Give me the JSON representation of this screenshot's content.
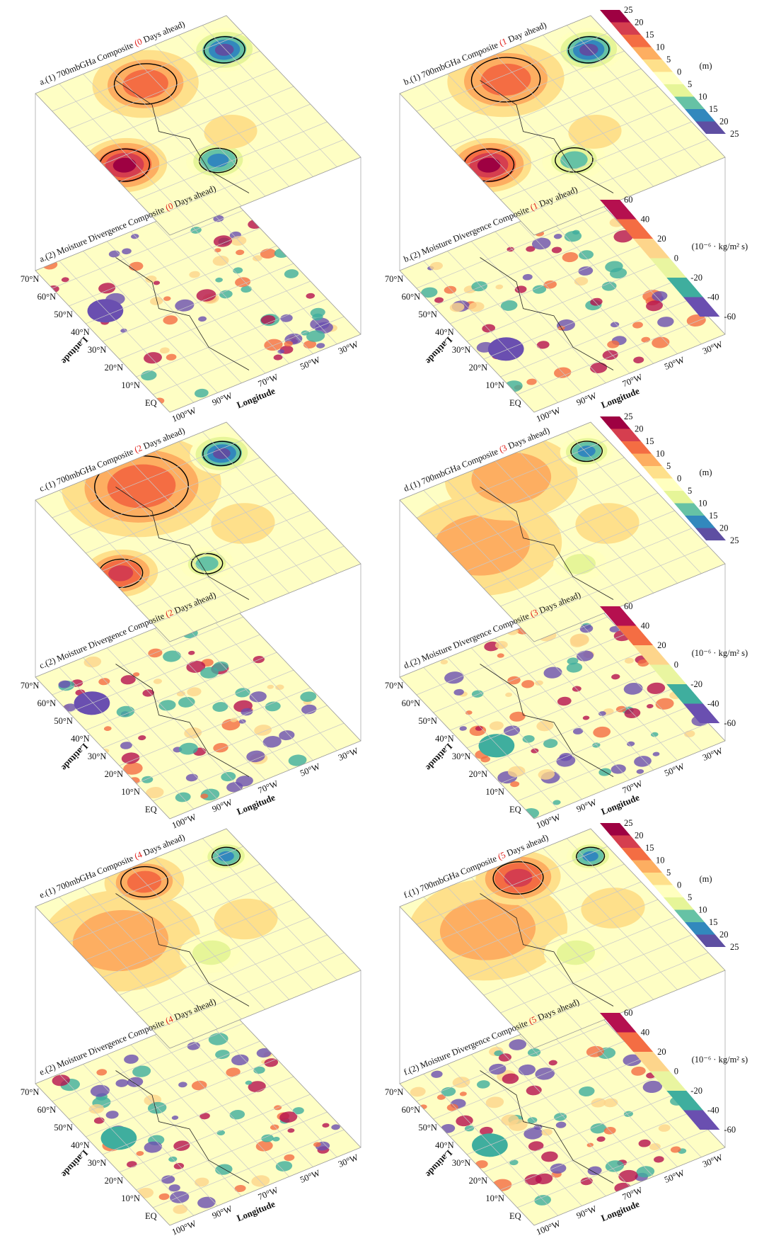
{
  "panels": [
    {
      "gha": {
        "prefix": "a.(1) 700mbGHa Composite ",
        "lead": "(0",
        "suffix": " Days ahead)"
      },
      "md": {
        "prefix": "a.(2) Moisture Divergence Composite ",
        "lead": "(0",
        "suffix": " Days ahead)"
      }
    },
    {
      "gha": {
        "prefix": "b.(1) 700mbGHa Composite ",
        "lead": "(1",
        "suffix": " Day ahead)"
      },
      "md": {
        "prefix": "b.(2) Moisture Divergence Composite ",
        "lead": "(1",
        "suffix": " Day ahead)"
      }
    },
    {
      "gha": {
        "prefix": "c.(1) 700mbGHa Composite ",
        "lead": "(2",
        "suffix": " Days ahead)"
      },
      "md": {
        "prefix": "c.(2) Moisture Divergence Composite ",
        "lead": "(2",
        "suffix": " Days ahead)"
      }
    },
    {
      "gha": {
        "prefix": "d.(1) 700mbGHa Composite ",
        "lead": "(3",
        "suffix": " Days ahead)"
      },
      "md": {
        "prefix": "d.(2) Moisture Divergence Composite ",
        "lead": "(3",
        "suffix": " Days ahead)"
      }
    },
    {
      "gha": {
        "prefix": "e.(1) 700mbGHa Composite ",
        "lead": "(4",
        "suffix": " Days ahead)"
      },
      "md": {
        "prefix": "e.(2) Moisture Divergence Composite ",
        "lead": "(4",
        "suffix": " Days ahead)"
      }
    },
    {
      "gha": {
        "prefix": "f.(1) 700mbGHa Composite ",
        "lead": "(5",
        "suffix": " Days ahead)"
      },
      "md": {
        "prefix": "f.(2) Moisture Divergence Composite ",
        "lead": "(5",
        "suffix": " Days ahead)"
      }
    }
  ],
  "axes": {
    "lat_ticks": [
      "70°N",
      "60°N",
      "50°N",
      "40°N",
      "30°N",
      "20°N",
      "10°N",
      "EQ"
    ],
    "lon_ticks": [
      "100°W",
      "90°W",
      "70°W",
      "50°W",
      "30°W"
    ],
    "lat_label": "Latitude",
    "lon_label": "Longitude"
  },
  "colorbars": {
    "gha": {
      "ticks": [
        25,
        20,
        15,
        10,
        5,
        0,
        5,
        10,
        15,
        20,
        25
      ],
      "unit": "(m)",
      "colors": [
        "#9e0142",
        "#d53e4f",
        "#f46d43",
        "#fdae61",
        "#fee08b",
        "#ffffbf",
        "#e6f598",
        "#66c2a5",
        "#3288bd",
        "#5e4fa2"
      ]
    },
    "md": {
      "ticks": [
        60,
        40,
        20,
        0,
        -20,
        -40,
        -60
      ],
      "unit": "(10⁻⁶ · kg/m² s)",
      "colors": [
        "#b5104f",
        "#f46d43",
        "#fdd58b",
        "#e9f5a0",
        "#3fae9e",
        "#6a4fb0"
      ]
    }
  }
}
